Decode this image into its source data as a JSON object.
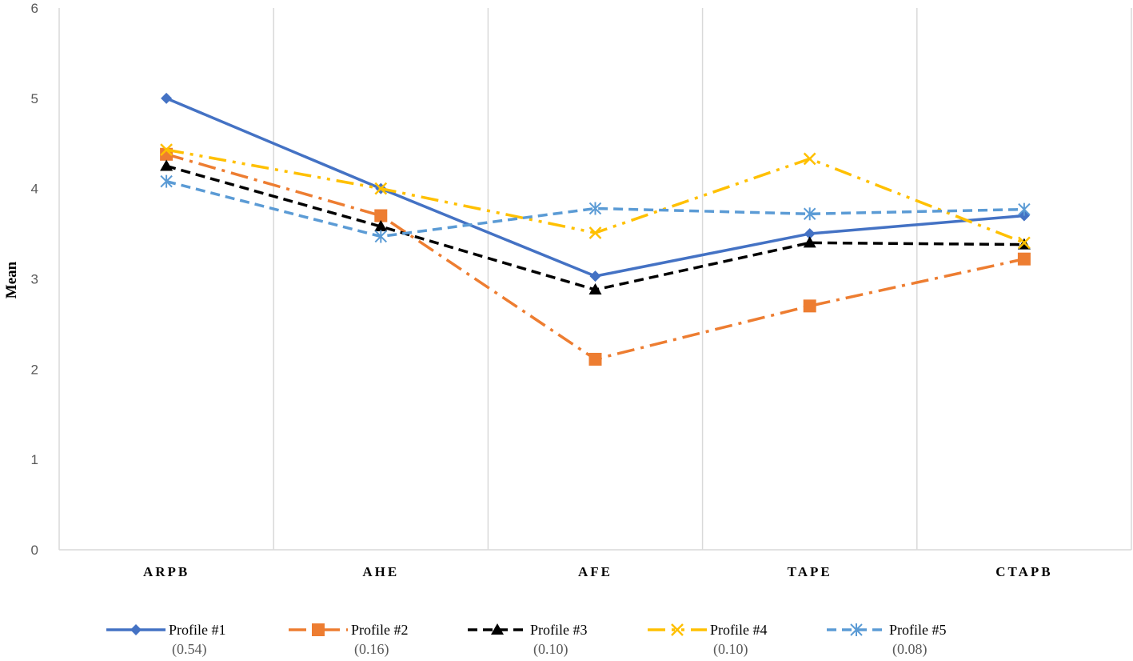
{
  "chart_data": {
    "type": "line",
    "title": "",
    "xlabel": "",
    "ylabel": "Mean",
    "ylim": [
      0,
      6
    ],
    "yticks": [
      "0",
      "1",
      "2",
      "3",
      "4",
      "5",
      "6"
    ],
    "categories": [
      "ARPB",
      "AHE",
      "AFE",
      "TAPE",
      "CTAPB"
    ],
    "grid": "vertical lines between categories",
    "legend_position": "bottom",
    "series": [
      {
        "name": "Profile #1",
        "sub": "(0.54)",
        "color": "#4472C4",
        "dash": "solid",
        "marker": "diamond",
        "values": [
          5.0,
          4.0,
          3.03,
          3.5,
          3.7
        ]
      },
      {
        "name": "Profile #2",
        "sub": "(0.16)",
        "color": "#ED7D31",
        "dash": "dash-dot",
        "marker": "square",
        "values": [
          4.38,
          3.7,
          2.11,
          2.7,
          3.22
        ]
      },
      {
        "name": "Profile #3",
        "sub": "(0.10)",
        "color": "#000000",
        "dash": "dash",
        "marker": "triangle",
        "values": [
          4.25,
          3.58,
          2.88,
          3.4,
          3.38
        ]
      },
      {
        "name": "Profile #4",
        "sub": "(0.10)",
        "color": "#FFC000",
        "dash": "dash-dot-dot",
        "marker": "x",
        "values": [
          4.43,
          4.0,
          3.51,
          4.33,
          3.4
        ]
      },
      {
        "name": "Profile #5",
        "sub": "(0.08)",
        "color": "#5B9BD5",
        "dash": "dash",
        "marker": "asterisk",
        "values": [
          4.08,
          3.47,
          3.78,
          3.72,
          3.77
        ]
      }
    ]
  }
}
